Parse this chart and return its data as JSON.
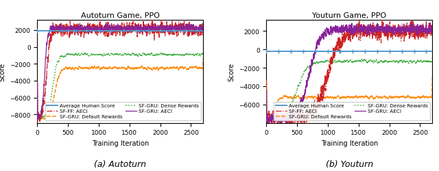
{
  "autoturn": {
    "title": "Autoturn Game, PPO",
    "xlabel": "Training Iteration",
    "ylabel": "Score",
    "caption": "(a) Autoturn",
    "human_score": 1900,
    "xlim": [
      0,
      2700
    ],
    "ylim": [
      -9000,
      3200
    ],
    "yticks": [
      -8000,
      -6000,
      -4000,
      -2000,
      0,
      2000
    ],
    "xticks": [
      0,
      500,
      1000,
      1500,
      2000,
      2500
    ]
  },
  "youturn": {
    "title": "Youturn Game, PPO",
    "xlabel": "Training Iteration",
    "ylabel": "Score",
    "caption": "(b) Youturn",
    "human_score": -200,
    "xlim": [
      0,
      2700
    ],
    "ylim": [
      -8000,
      3200
    ],
    "yticks": [
      -6000,
      -4000,
      -2000,
      0,
      2000
    ],
    "xticks": [
      0,
      500,
      1000,
      1500,
      2000,
      2500
    ]
  },
  "colors": {
    "human": "#5599cc",
    "sf_ff_aeci": "#cc2222",
    "sf_gru_default": "#ff8800",
    "sf_gru_dense": "#33aa33",
    "sf_gru_aeci": "#882299"
  },
  "legend_labels": {
    "human": "Average Human Score",
    "sf_ff_aeci": "SF-FF: AECI",
    "sf_gru_default": "SF-GRU: Default Rewards",
    "sf_gru_dense": "SF-GRU: Dense Rewards",
    "sf_gru_aeci": "SF-GRU: AECI"
  }
}
